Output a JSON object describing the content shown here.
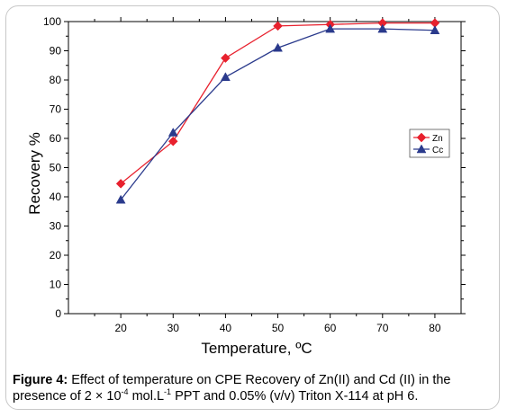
{
  "chart_data": {
    "type": "line",
    "x": [
      20,
      30,
      40,
      50,
      60,
      70,
      80
    ],
    "xlabel": "Temperature, ºC",
    "ylabel": "Recovery %",
    "xlim": [
      10,
      85
    ],
    "ylim": [
      0,
      100
    ],
    "xticks": [
      20,
      30,
      40,
      50,
      60,
      70,
      80
    ],
    "yticks": [
      0,
      10,
      20,
      30,
      40,
      50,
      60,
      70,
      80,
      90,
      100
    ],
    "grid": false,
    "legend_position": "right",
    "series": [
      {
        "name": "Zn",
        "color": "#e8212e",
        "marker": "diamond",
        "values": [
          44.5,
          59,
          87.5,
          98.5,
          99,
          99.5,
          99.5
        ]
      },
      {
        "name": "Cc",
        "color": "#2a3a8c",
        "marker": "triangle",
        "values": [
          39,
          62,
          81,
          91,
          97.5,
          97.5,
          97
        ]
      }
    ]
  },
  "caption": {
    "label": "Figure 4:",
    "text_1": " Effect of temperature on CPE Recovery of Zn(II) and Cd (II) in the presence of 2 × 10",
    "sup_1": "-4",
    "text_2": " mol.L",
    "sup_2": "-1",
    "text_3": " PPT and 0.05% (v/v) Triton X-114 at pH 6."
  }
}
